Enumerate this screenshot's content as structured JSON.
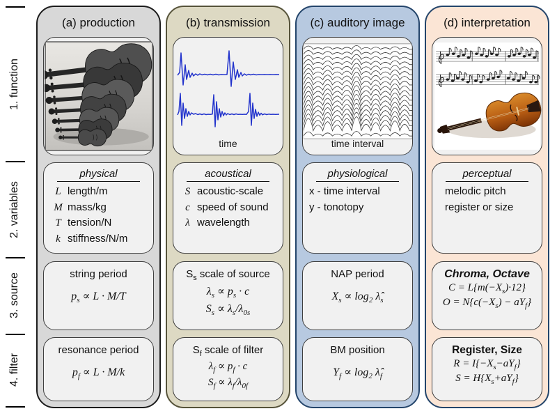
{
  "rows": [
    {
      "label": "1. function"
    },
    {
      "label": "2. variables"
    },
    {
      "label": "3. source"
    },
    {
      "label": "4. filter"
    }
  ],
  "columns": [
    {
      "header": "(a) production",
      "function": {
        "image": "violin-family-photo",
        "caption": ""
      },
      "variables": {
        "heading": "physical",
        "items": [
          {
            "sym": "L",
            "text": "length/m"
          },
          {
            "sym": "M",
            "text": "mass/kg"
          },
          {
            "sym": "T",
            "text": "tension/N"
          },
          {
            "sym": "k",
            "text": "stiffness/N/m"
          }
        ]
      },
      "source": {
        "title": "string period",
        "formulas": [
          "p_{s} ∝ L · M/T"
        ]
      },
      "filter": {
        "title": "resonance period",
        "formulas": [
          "p_{f} ∝ L · M/k"
        ]
      }
    },
    {
      "header": "(b) transmission",
      "function": {
        "image": "waveform-plot",
        "caption": "time"
      },
      "variables": {
        "heading": "acoustical",
        "items": [
          {
            "sym": "S",
            "text": "acoustic-scale"
          },
          {
            "sym": "c",
            "text": "speed of sound"
          },
          {
            "sym": "λ",
            "text": "wavelength"
          }
        ]
      },
      "source": {
        "title": "S_{s} scale of source",
        "formulas": [
          "λ_{s} ∝ p_{s} · c",
          "S_{s} ∝ λ_{s}/λ_{0s}"
        ]
      },
      "filter": {
        "title": "S_{f} scale of filter",
        "formulas": [
          "λ_{f} ∝ p_{f} · c",
          "S_{f} ∝ λ_{f}/λ_{0f}"
        ]
      }
    },
    {
      "header": "(c) auditory image",
      "function": {
        "image": "auditory-image-plot",
        "caption": "time interval"
      },
      "variables": {
        "heading": "physiological",
        "items": [
          {
            "sym": "",
            "text": "x - time interval"
          },
          {
            "sym": "",
            "text": "y - tonotopy"
          }
        ]
      },
      "source": {
        "title": "NAP period",
        "formulas": [
          "X_{s} ∝ log_{2} λ̂_{s}"
        ]
      },
      "filter": {
        "title": "BM position",
        "formulas": [
          "Y_{f} ∝ log_{2} λ̂_{f}"
        ]
      }
    },
    {
      "header": "(d) interpretation",
      "function": {
        "image": "music-notation-and-violin",
        "caption": ""
      },
      "variables": {
        "heading": "perceptual",
        "items": [
          {
            "sym": "",
            "text": "melodic pitch"
          },
          {
            "sym": "",
            "text": "register or size"
          }
        ]
      },
      "source": {
        "title": "Chroma, Octave",
        "formulas": [
          "C = L{m(−X_{s})·12}",
          "O = N{c(−X_{s}) − aY_{f}}"
        ]
      },
      "filter": {
        "title": "Register, Size",
        "formulas": [
          "R = I{−X_{s}−aY_{f}}",
          "S = H{X_{s}+aY_{f}}"
        ]
      }
    }
  ],
  "colors": {
    "col_a_fill": "#d8d8d8",
    "col_a_border": "#1c1c1c",
    "col_b_fill": "#ddd9c3",
    "col_b_border": "#56533a",
    "col_c_fill": "#b7c9e0",
    "col_c_border": "#24456b",
    "col_d_fill": "#fbe5d5",
    "col_d_border": "#24456b",
    "inner_box_fill": "#f1f1f1",
    "inner_box_border": "#3f3f3f",
    "waveform_blue": "#2233cc",
    "violin_orange": "#c0701e"
  }
}
